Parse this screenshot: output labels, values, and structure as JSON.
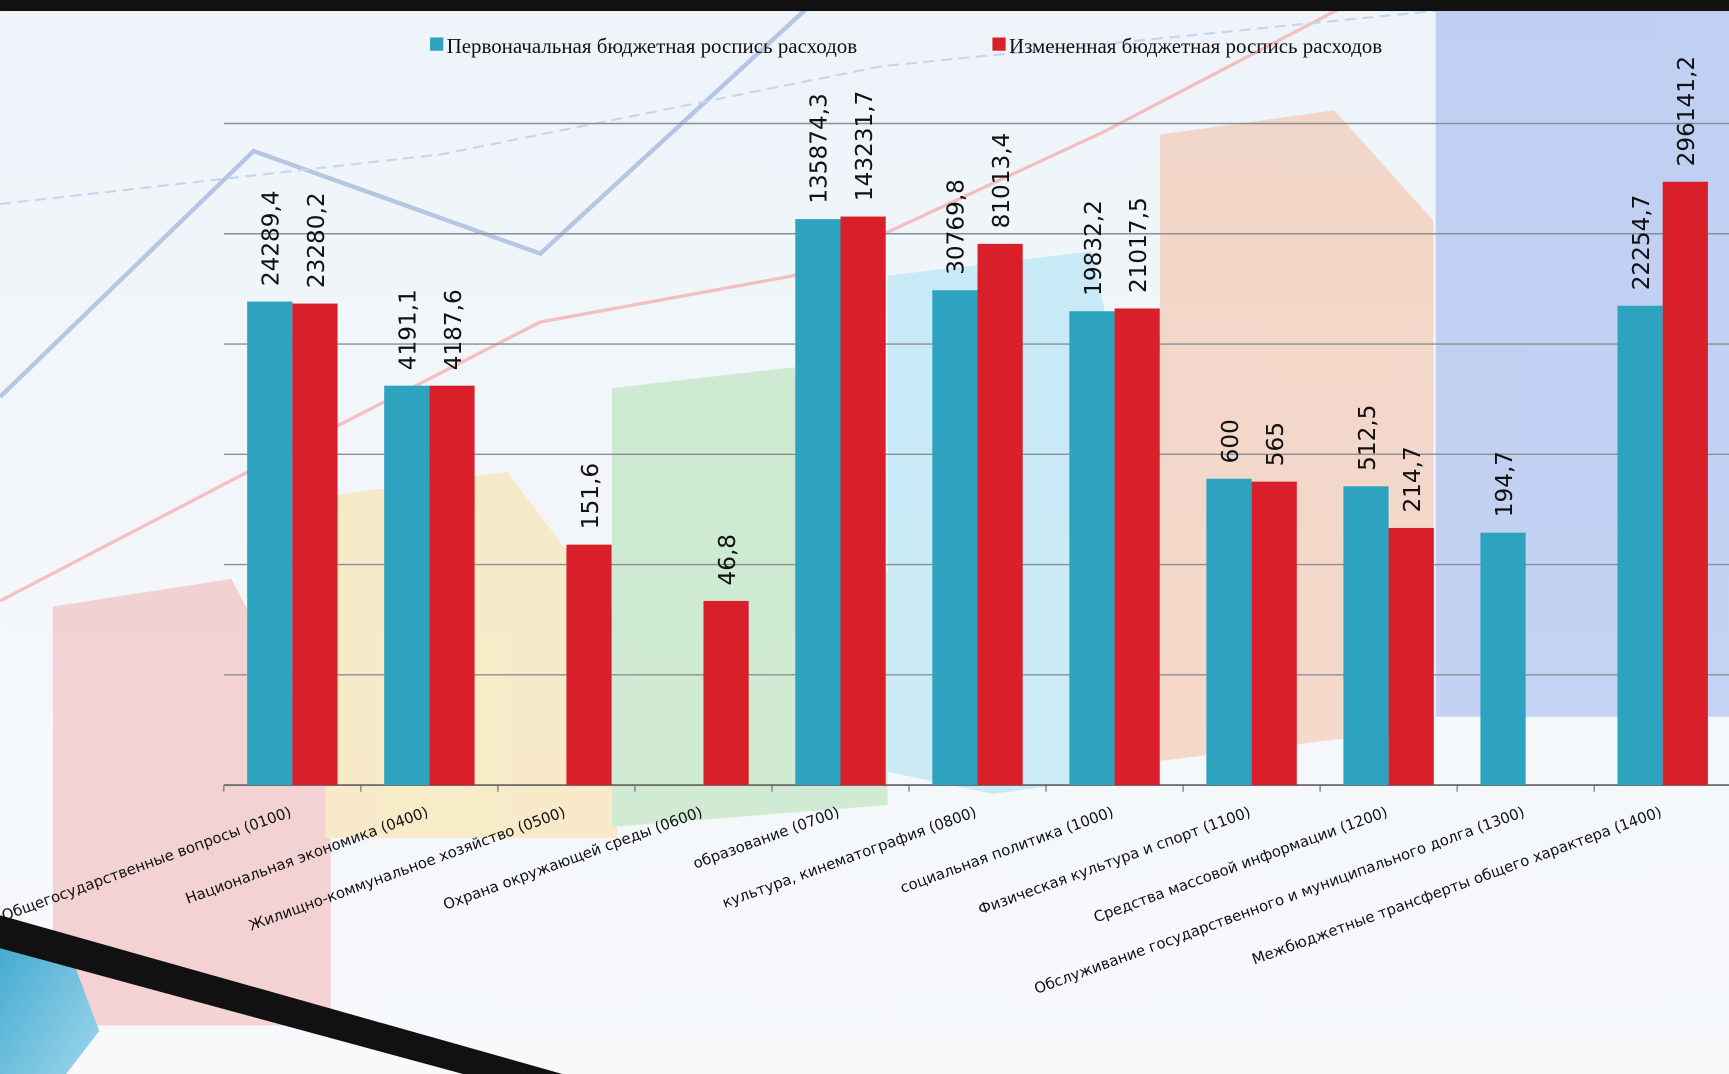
{
  "chart_data": {
    "type": "bar",
    "categories": [
      "Общегосударственные вопросы (0100)",
      "Национальная экономика (0400)",
      "Жилищно-коммунальное хозяйство (0500)",
      "Охрана окружающей среды (0600)",
      "образование (0700)",
      "культура, кинематография (0800)",
      "социальная политика (1000)",
      "Физическая культура и спорт (1100)",
      "Средства массовой информации (1200)",
      "Обслуживание государственного и муниципального долга (1300)",
      "Межбюджетные трансферты общего характера (1400)"
    ],
    "series": [
      {
        "name": "Первоначальная бюджетная роспись расходов",
        "color": "#2ea3c0",
        "values": [
          24289.4,
          4191.1,
          null,
          null,
          135874.3,
          30769.8,
          19832.2,
          600,
          512.5,
          194.7,
          22254.7
        ],
        "value_labels": [
          "24289,4",
          "4191,1",
          null,
          null,
          "135874,3",
          "30769,8",
          "19832,2",
          "600",
          "512,5",
          "194,7",
          "22254,7"
        ]
      },
      {
        "name": "Измененная бюджетная роспись расходов",
        "color": "#d81f2a",
        "values": [
          23280.2,
          4187.6,
          151.6,
          46.8,
          143231.7,
          81013.4,
          21017.5,
          565,
          214.7,
          null,
          296141.2
        ],
        "value_labels": [
          "23280,2",
          "4187,6",
          "151,6",
          "46,8",
          "143231,7",
          "81013,4",
          "21017,5",
          "565",
          "214,7",
          null,
          "296141,2"
        ]
      }
    ],
    "log_scale": true,
    "ylim": [
      1,
      1000000
    ],
    "yticks": [
      1,
      10,
      100,
      1000,
      10000,
      100000,
      1000000
    ],
    "ytick_labels": false,
    "grid": true,
    "legend": "top"
  }
}
